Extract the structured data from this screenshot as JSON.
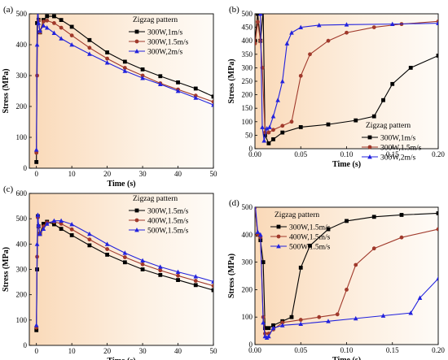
{
  "figure": {
    "panel_labels": [
      "(a)",
      "(b)",
      "(c)",
      "(d)"
    ]
  },
  "chart_data": [
    {
      "type": "line",
      "panel": "(a)",
      "xlabel": "Time (s)",
      "ylabel": "Stress (MPa)",
      "xlim": [
        -2,
        50
      ],
      "ylim": [
        0,
        500
      ],
      "xticks": [
        0,
        10,
        20,
        30,
        40,
        50
      ],
      "yticks": [
        0,
        100,
        200,
        300,
        400,
        500
      ],
      "legend": {
        "title": "Zigzag pattern",
        "position": "top-right"
      },
      "grid": false,
      "series": [
        {
          "name": "300W,1m/s",
          "color": "#000000",
          "marker": "square",
          "x": [
            0,
            0.2,
            0.4,
            0.6,
            1,
            2,
            3,
            5,
            7,
            10,
            15,
            20,
            25,
            30,
            35,
            40,
            45,
            50
          ],
          "y": [
            20,
            470,
            510,
            480,
            440,
            480,
            492,
            492,
            480,
            458,
            415,
            375,
            345,
            320,
            298,
            278,
            258,
            232
          ]
        },
        {
          "name": "300W,1.5m/s",
          "color": "#a0392b",
          "marker": "circle",
          "x": [
            0,
            0.2,
            0.4,
            0.6,
            1,
            2,
            3,
            5,
            7,
            10,
            15,
            20,
            25,
            30,
            35,
            40,
            45,
            50
          ],
          "y": [
            50,
            300,
            510,
            478,
            440,
            475,
            478,
            470,
            455,
            430,
            390,
            355,
            325,
            300,
            275,
            255,
            235,
            215
          ]
        },
        {
          "name": "300W,2m/s",
          "color": "#2222dd",
          "marker": "triangle",
          "x": [
            0,
            0.2,
            0.4,
            0.6,
            1,
            2,
            3,
            5,
            7,
            10,
            15,
            20,
            25,
            30,
            35,
            40,
            45,
            50
          ],
          "y": [
            60,
            400,
            515,
            470,
            445,
            462,
            455,
            438,
            420,
            400,
            370,
            342,
            315,
            292,
            272,
            250,
            228,
            205
          ]
        }
      ]
    },
    {
      "type": "line",
      "panel": "(b)",
      "xlabel": "Time (s)",
      "ylabel": "Stress (MPa)",
      "xlim": [
        0,
        0.2
      ],
      "ylim": [
        0,
        500
      ],
      "xticks": [
        0.0,
        0.05,
        0.1,
        0.15,
        0.2
      ],
      "yticks": [
        0,
        50,
        100,
        150,
        200,
        250,
        300,
        350,
        400,
        450,
        500
      ],
      "legend": {
        "title": "Zigzag pattern",
        "position": "bottom-right"
      },
      "grid": false,
      "series": [
        {
          "name": "300W,1m/s",
          "color": "#000000",
          "marker": "square",
          "x": [
            0,
            0.003,
            0.006,
            0.009,
            0.011,
            0.015,
            0.02,
            0.03,
            0.05,
            0.08,
            0.11,
            0.13,
            0.14,
            0.15,
            0.17,
            0.2
          ],
          "y": [
            400,
            500,
            400,
            510,
            50,
            20,
            35,
            60,
            80,
            90,
            105,
            120,
            180,
            240,
            300,
            345
          ]
        },
        {
          "name": "300W,1.5m/s",
          "color": "#a0392b",
          "marker": "circle",
          "x": [
            0,
            0.003,
            0.006,
            0.008,
            0.011,
            0.015,
            0.02,
            0.03,
            0.04,
            0.05,
            0.06,
            0.08,
            0.1,
            0.13,
            0.16,
            0.2
          ],
          "y": [
            390,
            470,
            400,
            300,
            60,
            60,
            70,
            85,
            100,
            270,
            350,
            400,
            430,
            450,
            462,
            472
          ]
        },
        {
          "name": "300W,2m/s",
          "color": "#2222dd",
          "marker": "triangle",
          "x": [
            0,
            0.003,
            0.006,
            0.008,
            0.01,
            0.013,
            0.016,
            0.02,
            0.025,
            0.03,
            0.035,
            0.04,
            0.05,
            0.07,
            0.1,
            0.15,
            0.2
          ],
          "y": [
            515,
            510,
            500,
            80,
            30,
            75,
            80,
            120,
            180,
            250,
            390,
            430,
            450,
            458,
            460,
            462,
            465
          ]
        }
      ]
    },
    {
      "type": "line",
      "panel": "(c)",
      "xlabel": "Time (s)",
      "ylabel": "Stress (MPa)",
      "xlim": [
        -2,
        50
      ],
      "ylim": [
        0,
        600
      ],
      "xticks": [
        0,
        10,
        20,
        30,
        40,
        50
      ],
      "yticks": [
        0,
        100,
        200,
        300,
        400,
        500,
        600
      ],
      "legend": {
        "title": "Zigzag pattern",
        "position": "top-right"
      },
      "grid": false,
      "series": [
        {
          "name": "300W,1.5m/s",
          "color": "#000000",
          "marker": "square",
          "x": [
            0,
            0.2,
            0.4,
            0.6,
            1,
            2,
            3,
            5,
            7,
            10,
            15,
            20,
            25,
            30,
            35,
            40,
            45,
            50
          ],
          "y": [
            60,
            300,
            510,
            470,
            440,
            480,
            488,
            478,
            460,
            435,
            395,
            358,
            328,
            300,
            278,
            258,
            238,
            218
          ]
        },
        {
          "name": "400W,1.5m/s",
          "color": "#a0392b",
          "marker": "circle",
          "x": [
            0,
            0.2,
            0.4,
            0.6,
            1,
            2,
            3,
            5,
            7,
            10,
            15,
            20,
            25,
            30,
            35,
            40,
            45,
            50
          ],
          "y": [
            70,
            350,
            505,
            470,
            440,
            470,
            485,
            488,
            480,
            458,
            418,
            380,
            348,
            320,
            296,
            275,
            255,
            235
          ]
        },
        {
          "name": "500W,1.5m/s",
          "color": "#2222dd",
          "marker": "triangle",
          "x": [
            0,
            0.2,
            0.4,
            0.6,
            1,
            2,
            3,
            5,
            7,
            10,
            15,
            20,
            25,
            30,
            35,
            40,
            45,
            50
          ],
          "y": [
            80,
            400,
            515,
            475,
            440,
            460,
            480,
            492,
            492,
            478,
            440,
            400,
            365,
            335,
            310,
            290,
            272,
            252
          ]
        }
      ]
    },
    {
      "type": "line",
      "panel": "(d)",
      "xlabel": "Time (s)",
      "ylabel": "Stress (MPa)",
      "xlim": [
        0,
        0.2
      ],
      "ylim": [
        0,
        500
      ],
      "xticks": [
        0.0,
        0.05,
        0.1,
        0.15,
        0.2
      ],
      "yticks": [
        0,
        100,
        200,
        300,
        400,
        500
      ],
      "legend": {
        "title": "Zigzag pattern",
        "position": "top-left"
      },
      "grid": false,
      "series": [
        {
          "name": "300W,1.5m/s",
          "color": "#000000",
          "marker": "square",
          "x": [
            0,
            0.003,
            0.006,
            0.009,
            0.011,
            0.015,
            0.02,
            0.03,
            0.04,
            0.05,
            0.06,
            0.08,
            0.1,
            0.13,
            0.16,
            0.2
          ],
          "y": [
            510,
            400,
            380,
            300,
            60,
            60,
            70,
            85,
            100,
            280,
            360,
            420,
            450,
            465,
            472,
            478
          ]
        },
        {
          "name": "400W,1.5m/s",
          "color": "#a0392b",
          "marker": "circle",
          "x": [
            0,
            0.003,
            0.006,
            0.009,
            0.011,
            0.015,
            0.02,
            0.03,
            0.05,
            0.07,
            0.09,
            0.1,
            0.11,
            0.13,
            0.16,
            0.2
          ],
          "y": [
            500,
            400,
            390,
            100,
            40,
            40,
            55,
            80,
            90,
            100,
            110,
            200,
            290,
            350,
            390,
            420
          ]
        },
        {
          "name": "500W,1.5m/s",
          "color": "#2222dd",
          "marker": "triangle",
          "x": [
            0,
            0.003,
            0.006,
            0.009,
            0.011,
            0.013,
            0.015,
            0.02,
            0.03,
            0.05,
            0.08,
            0.11,
            0.14,
            0.17,
            0.18,
            0.2
          ],
          "y": [
            520,
            410,
            400,
            80,
            30,
            25,
            30,
            60,
            70,
            75,
            85,
            95,
            105,
            115,
            170,
            240
          ]
        }
      ]
    }
  ]
}
